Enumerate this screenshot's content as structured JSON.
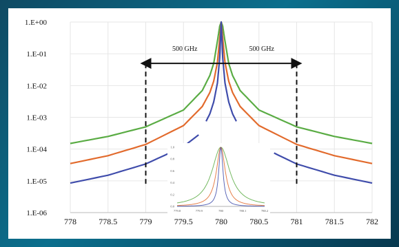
{
  "chart_data": [
    {
      "type": "line",
      "yscale": "log",
      "xlim": [
        778,
        782
      ],
      "ylim": [
        1e-06,
        1
      ],
      "xticks": [
        "778",
        "778.5",
        "779",
        "779.5",
        "780",
        "780.5",
        "781",
        "781.5",
        "782"
      ],
      "yticks": [
        "1.E-06",
        "1.E-05",
        "1.E-04",
        "1.E-03",
        "1.E-02",
        "1.E-01",
        "1.E+00"
      ],
      "grid": "vertical and horizontal",
      "series": [
        {
          "color": "#5aac44",
          "x": [
            778,
            778.5,
            779,
            779.5,
            779.75,
            779.85,
            779.9,
            779.95,
            779.98,
            780,
            780.02,
            780.05,
            780.1,
            780.15,
            780.25,
            780.5,
            781,
            781.5,
            782
          ],
          "y": [
            0.00015,
            0.00025,
            0.0005,
            0.0017,
            0.007,
            0.021,
            0.049,
            0.25,
            0.74,
            1,
            0.74,
            0.25,
            0.049,
            0.021,
            0.007,
            0.0017,
            0.0005,
            0.00025,
            0.00015
          ]
        },
        {
          "color": "#e26a2c",
          "x": [
            778,
            778.5,
            779,
            779.5,
            779.75,
            779.85,
            779.9,
            779.95,
            779.98,
            780,
            780.02,
            780.05,
            780.1,
            780.15,
            780.25,
            780.5,
            781,
            781.5,
            782
          ],
          "y": [
            3.5e-05,
            6.2e-05,
            0.00014,
            0.00055,
            0.0022,
            0.0061,
            0.0135,
            0.054,
            0.31,
            1,
            0.31,
            0.054,
            0.0135,
            0.0061,
            0.0022,
            0.00055,
            0.00014,
            6.2e-05,
            3.5e-05
          ]
        },
        {
          "color": "#3f4cab",
          "x": [
            778,
            778.5,
            779,
            779.5,
            779.7
          ],
          "y": [
            8.5e-06,
            1.5e-05,
            3.4e-05,
            0.00012,
            0.00028
          ]
        },
        {
          "color": "#3f4cab",
          "x": [
            779.8,
            779.85,
            779.9,
            779.95,
            779.98,
            780,
            780.02,
            780.05,
            780.1,
            780.15,
            780.2
          ],
          "y": [
            0.00075,
            0.0013,
            0.003,
            0.012,
            0.075,
            1,
            0.075,
            0.012,
            0.003,
            0.0013,
            0.00075
          ]
        },
        {
          "color": "#3f4cab",
          "x": [
            780.7,
            781,
            781.5,
            782
          ],
          "y": [
            7.5e-05,
            3.4e-05,
            1.5e-05,
            8.5e-06
          ]
        }
      ],
      "markers": [
        {
          "type": "vertical-dashed-line",
          "x": 779
        },
        {
          "type": "vertical-dashed-line",
          "x": 781
        }
      ],
      "annotations": [
        {
          "text": "500 GHz",
          "from_x": 779,
          "to_x": 780,
          "y": 0.05
        },
        {
          "text": "500 GHz",
          "from_x": 780,
          "to_x": 781,
          "y": 0.05
        }
      ]
    },
    {
      "type": "line",
      "placement": "inset, bottom center",
      "xlim": [
        779.8,
        780.2
      ],
      "ylim": [
        0,
        1
      ],
      "xticks": [
        "779.8",
        "779.9",
        "780",
        "780.1",
        "780.2"
      ],
      "yticks": [
        "0.0",
        "0.2",
        "0.4",
        "0.6",
        "0.8",
        "1.0"
      ],
      "series": [
        {
          "color": "#5aac44",
          "shape": "lorentzian",
          "center": 780,
          "hwhm": 0.05
        },
        {
          "color": "#e26a2c",
          "shape": "lorentzian",
          "center": 780,
          "hwhm": 0.025
        },
        {
          "color": "#3f4cab",
          "shape": "lorentzian",
          "center": 780,
          "hwhm": 0.012
        }
      ]
    }
  ]
}
